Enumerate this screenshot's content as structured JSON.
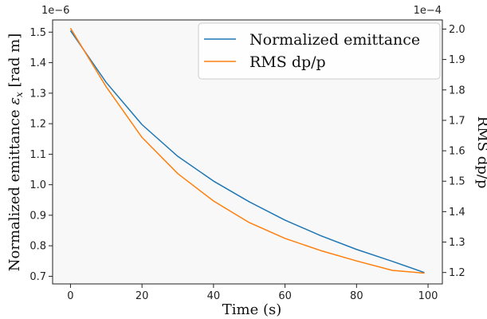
{
  "chart_data": {
    "type": "line",
    "background": "#f8f8f8",
    "x": [
      0,
      10,
      20,
      30,
      40,
      50,
      60,
      70,
      80,
      90,
      99
    ],
    "xlabel": "Time (s)",
    "xlim": [
      -5,
      104
    ],
    "xticks": [
      0,
      20,
      40,
      60,
      80,
      100
    ],
    "xtick_labels": [
      "0",
      "20",
      "40",
      "60",
      "80",
      "100"
    ],
    "left_axis": {
      "label": "Normalized emittance ε_x [rad m]",
      "label_main": "Normalized emittance ",
      "label_symbol": "ε",
      "label_sub": "x",
      "label_unit": " [rad m]",
      "multiplier": "1e−6",
      "lim": [
        0.675,
        1.54
      ],
      "ticks": [
        0.7,
        0.8,
        0.9,
        1.0,
        1.1,
        1.2,
        1.3,
        1.4,
        1.5
      ],
      "tick_labels": [
        "0.7",
        "0.8",
        "0.9",
        "1.0",
        "1.1",
        "1.2",
        "1.3",
        "1.4",
        "1.5"
      ]
    },
    "right_axis": {
      "label": "RMS dp/p",
      "multiplier": "1e−4",
      "lim": [
        1.1625,
        2.03
      ],
      "ticks": [
        1.2,
        1.3,
        1.4,
        1.5,
        1.6,
        1.7,
        1.8,
        1.9,
        2.0
      ],
      "tick_labels": [
        "1.2",
        "1.3",
        "1.4",
        "1.5",
        "1.6",
        "1.7",
        "1.8",
        "1.9",
        "2.0"
      ]
    },
    "series": [
      {
        "name": "Normalized emittance",
        "axis": "left",
        "color": "#1f77b4",
        "values": [
          1.505,
          1.335,
          1.197,
          1.093,
          1.012,
          0.944,
          0.884,
          0.833,
          0.788,
          0.749,
          0.712
        ]
      },
      {
        "name": "RMS dp/p",
        "axis": "right",
        "color": "#ff7f0e",
        "values": [
          2.003,
          1.81,
          1.644,
          1.525,
          1.435,
          1.364,
          1.312,
          1.272,
          1.238,
          1.207,
          1.198
        ]
      }
    ],
    "legend_position": "top-right"
  }
}
